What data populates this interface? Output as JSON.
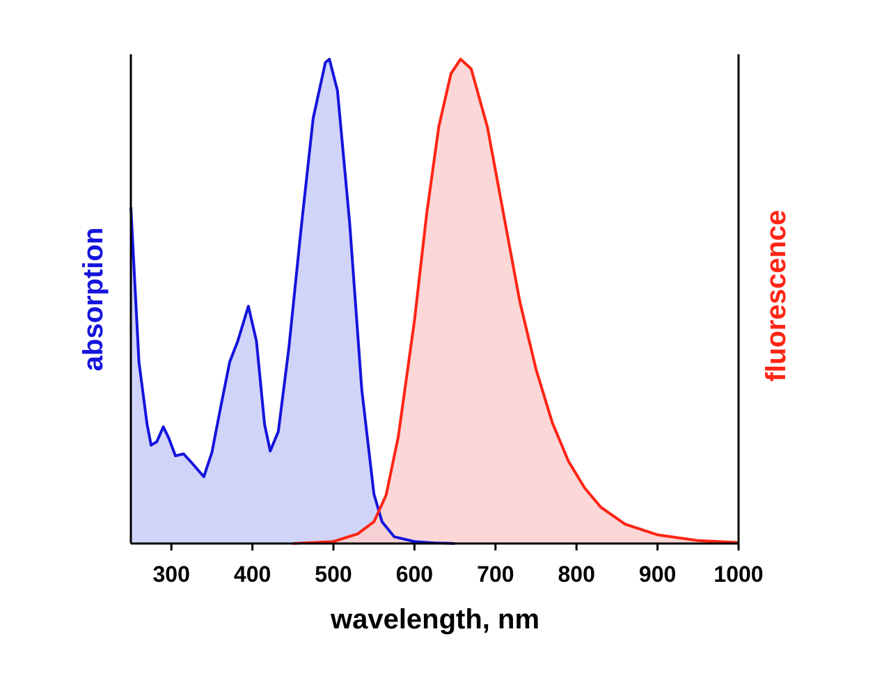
{
  "chart_data": {
    "type": "area",
    "xlabel": "wavelength, nm",
    "ylabel": "absorption",
    "y2label": "fluorescence",
    "xlim": [
      250,
      1000
    ],
    "xticks": [
      300,
      400,
      500,
      600,
      700,
      800,
      900,
      1000
    ],
    "ylim": [
      0,
      1
    ],
    "y2lim": [
      0,
      1
    ],
    "series": [
      {
        "name": "absorption",
        "color": "#1414dc",
        "fill": "#c9cdf8",
        "x": [
          250,
          260,
          270,
          275,
          282,
          290,
          297,
          305,
          315,
          325,
          340,
          350,
          360,
          372,
          382,
          395,
          405,
          415,
          422,
          432,
          445,
          460,
          475,
          490,
          495,
          505,
          520,
          535,
          550,
          560,
          575,
          600,
          625,
          650
        ],
        "values": [
          0.694,
          0.375,
          0.246,
          0.203,
          0.21,
          0.241,
          0.217,
          0.181,
          0.185,
          0.167,
          0.138,
          0.188,
          0.274,
          0.375,
          0.418,
          0.49,
          0.418,
          0.246,
          0.191,
          0.231,
          0.404,
          0.648,
          0.878,
          0.993,
          1.0,
          0.935,
          0.662,
          0.318,
          0.102,
          0.045,
          0.014,
          0.004,
          0.001,
          0
        ]
      },
      {
        "name": "fluorescence",
        "color": "#ff2414",
        "fill": "#fcd0d0",
        "axis": "y2",
        "x": [
          450,
          500,
          530,
          550,
          565,
          580,
          600,
          615,
          630,
          645,
          657,
          670,
          690,
          710,
          730,
          750,
          770,
          790,
          810,
          830,
          860,
          900,
          950,
          1000
        ],
        "values": [
          0,
          0.004,
          0.02,
          0.045,
          0.1,
          0.22,
          0.46,
          0.68,
          0.86,
          0.97,
          1.0,
          0.98,
          0.86,
          0.68,
          0.5,
          0.36,
          0.25,
          0.17,
          0.115,
          0.075,
          0.04,
          0.018,
          0.006,
          0.002
        ]
      }
    ]
  }
}
